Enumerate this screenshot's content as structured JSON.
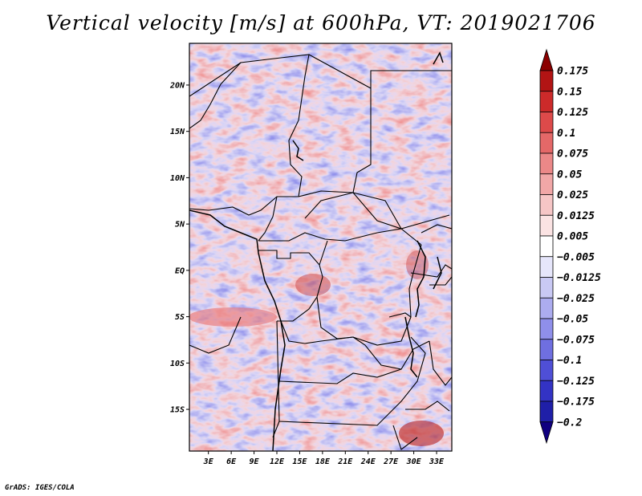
{
  "title": "Vertical velocity [m/s] at 600hPa, VT: 2019021706",
  "footer": "GrADS: IGES/COLA",
  "map": {
    "lat_labels": [
      "20N",
      "15N",
      "10N",
      "5N",
      "EQ",
      "5S",
      "10S",
      "15S"
    ],
    "lat_values": [
      20,
      15,
      10,
      5,
      0,
      -5,
      -10,
      -15
    ],
    "lon_labels": [
      "3E",
      "6E",
      "9E",
      "12E",
      "15E",
      "18E",
      "21E",
      "24E",
      "27E",
      "30E",
      "33E"
    ],
    "lon_values": [
      3,
      6,
      9,
      12,
      15,
      18,
      21,
      24,
      27,
      30,
      33
    ],
    "lon_range": [
      0.5,
      35.0
    ],
    "lat_range": [
      -19.5,
      24.5
    ]
  },
  "colorbar": {
    "labels": [
      "0.175",
      "0.15",
      "0.125",
      "0.1",
      "0.075",
      "0.05",
      "0.025",
      "0.0125",
      "0.005",
      "−0.005",
      "−0.0125",
      "−0.025",
      "−0.05",
      "−0.075",
      "−0.1",
      "−0.125",
      "−0.175",
      "−0.2"
    ],
    "colors": [
      "#8b0000",
      "#b21414",
      "#cc2a2a",
      "#dd4a4a",
      "#e46868",
      "#eb8888",
      "#f1a7a7",
      "#f6c6c6",
      "#fbe3e3",
      "#ffffff",
      "#e6e6fb",
      "#c9c9f4",
      "#acacef",
      "#8f8fea",
      "#6f6fe0",
      "#4f4fd6",
      "#3333c4",
      "#1f1fa8",
      "#100080"
    ]
  }
}
